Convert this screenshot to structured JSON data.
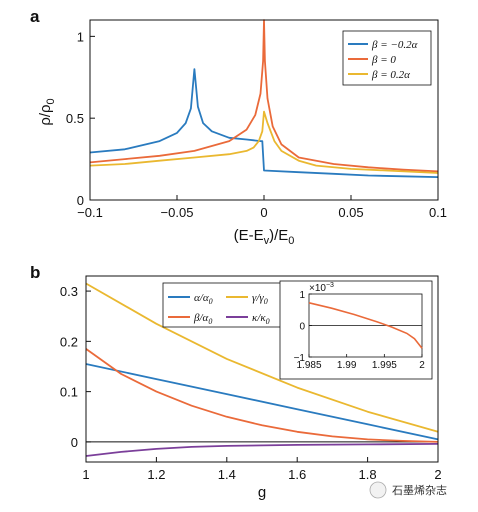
{
  "chart_data": [
    {
      "panel": "a",
      "type": "line",
      "ylabel": "ρ/ρ0",
      "xlabel": "(E-Ev)/E0",
      "xlim": [
        -0.1,
        0.1
      ],
      "ylim": [
        0,
        1.1
      ],
      "xticks": [
        "−0.1",
        "−0.05",
        "0",
        "0.05",
        "0.1"
      ],
      "yticks": [
        "0",
        "0.5",
        "1"
      ],
      "legend_position": "top-right",
      "series": [
        {
          "name": "β = −0.2α",
          "color": "#2a7bbf",
          "x": [
            -0.1,
            -0.08,
            -0.06,
            -0.05,
            -0.045,
            -0.042,
            -0.04,
            -0.038,
            -0.035,
            -0.03,
            -0.02,
            -0.01,
            -0.002,
            -0.001,
            0.0,
            0.02,
            0.04,
            0.06,
            0.08,
            0.1
          ],
          "y": [
            0.29,
            0.31,
            0.36,
            0.41,
            0.47,
            0.56,
            0.8,
            0.57,
            0.47,
            0.42,
            0.38,
            0.37,
            0.36,
            0.36,
            0.18,
            0.17,
            0.16,
            0.15,
            0.145,
            0.14
          ]
        },
        {
          "name": "β = 0",
          "color": "#ea6a3a",
          "x": [
            -0.1,
            -0.08,
            -0.06,
            -0.04,
            -0.02,
            -0.01,
            -0.005,
            -0.002,
            -0.0005,
            0.0,
            0.0005,
            0.002,
            0.005,
            0.01,
            0.02,
            0.04,
            0.06,
            0.08,
            0.1
          ],
          "y": [
            0.23,
            0.25,
            0.27,
            0.3,
            0.36,
            0.43,
            0.52,
            0.65,
            0.85,
            1.1,
            0.85,
            0.62,
            0.45,
            0.34,
            0.26,
            0.22,
            0.2,
            0.185,
            0.175
          ]
        },
        {
          "name": "β = 0.2α",
          "color": "#eab830",
          "x": [
            -0.1,
            -0.08,
            -0.06,
            -0.04,
            -0.02,
            -0.01,
            -0.006,
            -0.003,
            -0.001,
            0.0,
            0.002,
            0.006,
            0.01,
            0.02,
            0.03,
            0.05,
            0.07,
            0.1
          ],
          "y": [
            0.21,
            0.22,
            0.24,
            0.26,
            0.28,
            0.3,
            0.32,
            0.36,
            0.42,
            0.54,
            0.47,
            0.36,
            0.3,
            0.24,
            0.21,
            0.19,
            0.18,
            0.165
          ]
        }
      ]
    },
    {
      "panel": "b",
      "type": "line",
      "xlabel": "g",
      "xlim": [
        1,
        2
      ],
      "ylim": [
        -0.04,
        0.33
      ],
      "xticks": [
        "1",
        "1.2",
        "1.4",
        "1.6",
        "1.8",
        "2"
      ],
      "yticks": [
        "0",
        "0.1",
        "0.2",
        "0.3"
      ],
      "legend_position": "top-center",
      "series": [
        {
          "name": "α/α0",
          "color": "#2a7bbf",
          "x": [
            1,
            1.2,
            1.4,
            1.6,
            1.8,
            2
          ],
          "y": [
            0.155,
            0.125,
            0.095,
            0.065,
            0.035,
            0.005
          ]
        },
        {
          "name": "β/α0",
          "color": "#ea6a3a",
          "x": [
            1,
            1.1,
            1.2,
            1.3,
            1.4,
            1.5,
            1.6,
            1.7,
            1.8,
            1.9,
            2
          ],
          "y": [
            0.185,
            0.135,
            0.1,
            0.072,
            0.05,
            0.033,
            0.02,
            0.011,
            0.005,
            0.002,
            0.0
          ]
        },
        {
          "name": "γ/γ0",
          "color": "#eab830",
          "x": [
            1,
            1.2,
            1.4,
            1.6,
            1.8,
            2
          ],
          "y": [
            0.315,
            0.235,
            0.165,
            0.108,
            0.06,
            0.02
          ]
        },
        {
          "name": "κ/κ0",
          "color": "#7b3f9a",
          "x": [
            1,
            1.1,
            1.2,
            1.3,
            1.4,
            1.6,
            1.8,
            2
          ],
          "y": [
            -0.028,
            -0.02,
            -0.014,
            -0.01,
            -0.008,
            -0.006,
            -0.005,
            -0.004
          ]
        }
      ],
      "inset": {
        "xlim": [
          1.985,
          2
        ],
        "ylim": [
          -1,
          1
        ],
        "xticks": [
          "1.985",
          "1.99",
          "1.995",
          "2"
        ],
        "yticks": [
          "−1",
          "0",
          "1"
        ],
        "scale_label": "×10",
        "scale_exponent": "−3",
        "series": {
          "color": "#ea6a3a",
          "x": [
            1.985,
            1.988,
            1.991,
            1.994,
            1.996,
            1.998,
            1.999,
            2.0
          ],
          "y": [
            0.72,
            0.55,
            0.35,
            0.12,
            -0.05,
            -0.25,
            -0.42,
            -0.72
          ]
        }
      }
    }
  ],
  "watermark": "石墨烯杂志"
}
